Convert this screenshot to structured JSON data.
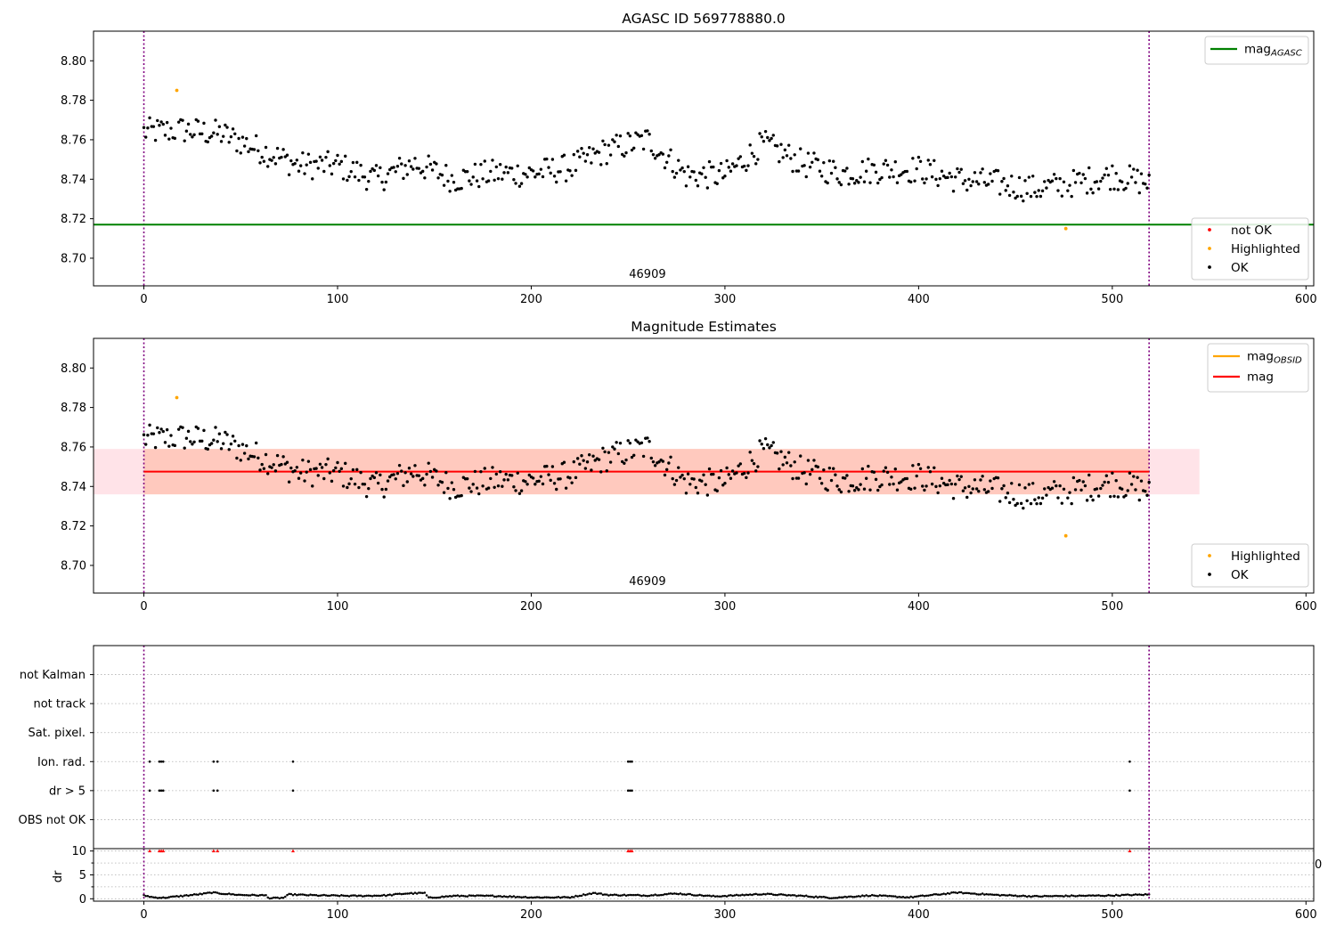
{
  "chart_data": [
    {
      "type": "scatter",
      "title": "AGASC ID 569778880.0",
      "xlabel": "",
      "ylabel": "",
      "xlim": [
        -26,
        604
      ],
      "ylim": [
        8.686,
        8.815
      ],
      "x_ticks": [
        0,
        100,
        200,
        300,
        400,
        500,
        600
      ],
      "y_ticks": [
        8.7,
        8.72,
        8.74,
        8.76,
        8.78,
        8.8
      ],
      "grid": false,
      "obsid_label": "46909",
      "obsid_boundaries": [
        0,
        519
      ],
      "reference_lines": [
        {
          "name": "mag",
          "subscript": "AGASC",
          "value": 8.717,
          "color": "#008000"
        }
      ],
      "legend_lines_position": "upper right",
      "legend_points_position": "lower right",
      "series": [
        {
          "name": "not OK",
          "color": "#ff0000",
          "points": []
        },
        {
          "name": "Highlighted",
          "color": "#ffa500",
          "points": [
            [
              17,
              8.785
            ],
            [
              476,
              8.715
            ]
          ]
        },
        {
          "name": "OK",
          "color": "#000000",
          "trend": [
            [
              0,
              8.764
            ],
            [
              20,
              8.765
            ],
            [
              40,
              8.763
            ],
            [
              60,
              8.755
            ],
            [
              80,
              8.747
            ],
            [
              100,
              8.747
            ],
            [
              120,
              8.74
            ],
            [
              140,
              8.748
            ],
            [
              160,
              8.74
            ],
            [
              180,
              8.743
            ],
            [
              200,
              8.743
            ],
            [
              220,
              8.746
            ],
            [
              240,
              8.755
            ],
            [
              260,
              8.76
            ],
            [
              280,
              8.742
            ],
            [
              300,
              8.742
            ],
            [
              320,
              8.758
            ],
            [
              340,
              8.748
            ],
            [
              360,
              8.743
            ],
            [
              380,
              8.745
            ],
            [
              400,
              8.745
            ],
            [
              420,
              8.74
            ],
            [
              440,
              8.738
            ],
            [
              460,
              8.735
            ],
            [
              480,
              8.738
            ],
            [
              500,
              8.742
            ],
            [
              519,
              8.738
            ]
          ],
          "scatter": 0.007
        }
      ]
    },
    {
      "type": "scatter",
      "title": "Magnitude Estimates",
      "xlabel": "",
      "ylabel": "",
      "xlim": [
        -26,
        604
      ],
      "ylim": [
        8.686,
        8.815
      ],
      "x_ticks": [
        0,
        100,
        200,
        300,
        400,
        500,
        600
      ],
      "y_ticks": [
        8.7,
        8.72,
        8.74,
        8.76,
        8.78,
        8.8
      ],
      "grid": false,
      "obsid_label": "46909",
      "obsid_boundaries": [
        0,
        519
      ],
      "bands": [
        {
          "x": [
            -26,
            545
          ],
          "y": [
            8.736,
            8.759
          ],
          "color": "#ffc0cb"
        },
        {
          "x": [
            0,
            519
          ],
          "y": [
            8.736,
            8.759
          ],
          "color": "#ffa07a"
        }
      ],
      "reference_lines": [
        {
          "name": "mag",
          "subscript": "OBSID",
          "value": null,
          "color": "#ffa500"
        },
        {
          "name": "mag",
          "subscript": "",
          "value": 8.7475,
          "color": "#ff0000"
        }
      ],
      "legend_lines_position": "upper right",
      "legend_points_position": "lower right",
      "series": [
        {
          "name": "Highlighted",
          "color": "#ffa500",
          "points": [
            [
              17,
              8.785
            ],
            [
              476,
              8.715
            ]
          ]
        },
        {
          "name": "OK",
          "color": "#000000",
          "same_as_panel": 0
        }
      ]
    },
    {
      "type": "scatter",
      "title": "",
      "xlim": [
        -26,
        604
      ],
      "x_ticks": [
        0,
        100,
        200,
        300,
        400,
        500,
        600
      ],
      "categories": [
        "not Kalman",
        "not track",
        "Sat. pixel.",
        "Ion. rad.",
        "dr > 5",
        "OBS not OK"
      ],
      "grid": true,
      "flag_points": {
        "not Kalman": [],
        "not track": [],
        "Sat. pixel.": [],
        "Ion. rad.": [
          3,
          8,
          9,
          10,
          36,
          38,
          77,
          250,
          251,
          252,
          509
        ],
        "dr > 5": [
          3,
          8,
          9,
          10,
          36,
          38,
          77,
          250,
          251,
          252,
          509
        ],
        "OBS not OK": []
      }
    },
    {
      "type": "scatter",
      "title": "",
      "ylabel": "dr",
      "xlim": [
        -26,
        604
      ],
      "ylim": [
        -0.5,
        10.5
      ],
      "x_ticks": [
        0,
        100,
        200,
        300,
        400,
        500,
        600
      ],
      "y_ticks": [
        0,
        5,
        10
      ],
      "grid": true,
      "right_edge_label": "0",
      "high_dr_markers": {
        "value": 10,
        "color": "#ff0000",
        "x": [
          3,
          8,
          9,
          10,
          36,
          38,
          77,
          250,
          251,
          252,
          509
        ]
      },
      "dr_trend": [
        [
          0,
          0.7
        ],
        [
          5,
          0.3
        ],
        [
          10,
          0.2
        ],
        [
          20,
          0.6
        ],
        [
          30,
          1.0
        ],
        [
          35,
          1.3
        ],
        [
          40,
          1.1
        ],
        [
          50,
          0.8
        ],
        [
          63,
          0.7
        ],
        [
          65,
          0.1
        ],
        [
          72,
          0.2
        ],
        [
          75,
          0.9
        ],
        [
          90,
          0.7
        ],
        [
          110,
          0.6
        ],
        [
          125,
          0.7
        ],
        [
          135,
          1.1
        ],
        [
          145,
          1.2
        ],
        [
          147,
          0.2
        ],
        [
          160,
          0.6
        ],
        [
          180,
          0.6
        ],
        [
          200,
          0.3
        ],
        [
          220,
          0.3
        ],
        [
          232,
          1.2
        ],
        [
          240,
          0.8
        ],
        [
          260,
          0.7
        ],
        [
          275,
          1.1
        ],
        [
          295,
          0.5
        ],
        [
          320,
          1.0
        ],
        [
          340,
          0.6
        ],
        [
          355,
          0.2
        ],
        [
          375,
          0.7
        ],
        [
          395,
          0.3
        ],
        [
          420,
          1.3
        ],
        [
          440,
          0.8
        ],
        [
          460,
          0.5
        ],
        [
          480,
          0.6
        ],
        [
          500,
          0.7
        ],
        [
          519,
          0.9
        ]
      ]
    }
  ]
}
